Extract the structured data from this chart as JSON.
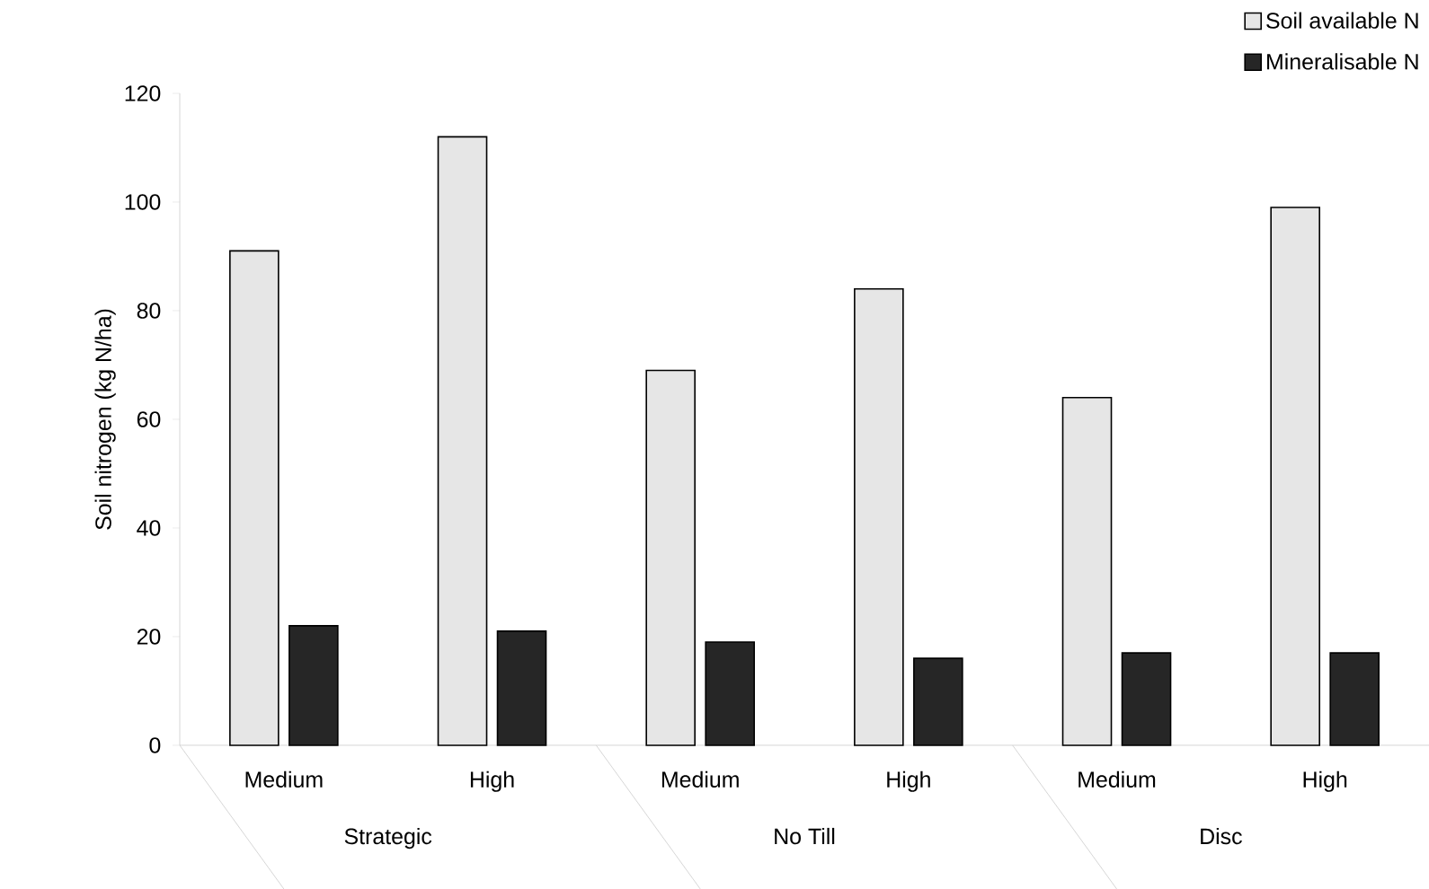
{
  "chart_data": {
    "type": "bar",
    "ylabel": "Soil nitrogen (kg N/ha)",
    "categories": [
      "Medium",
      "High",
      "Medium",
      "High",
      "Medium",
      "High"
    ],
    "series": [
      {
        "name": "Soil available N",
        "color": "#e6e6e6",
        "values": [
          91,
          112,
          69,
          84,
          64,
          99
        ]
      },
      {
        "name": "Mineralisable N",
        "color": "#262626",
        "values": [
          22,
          21,
          19,
          16,
          17,
          17
        ]
      }
    ],
    "annotations": [
      "Strategic",
      "No Till",
      "Disc"
    ],
    "ylim": [
      0,
      120
    ],
    "yticks": [
      0,
      20,
      40,
      60,
      80,
      100,
      120
    ],
    "grid": false,
    "legend": "top right"
  }
}
